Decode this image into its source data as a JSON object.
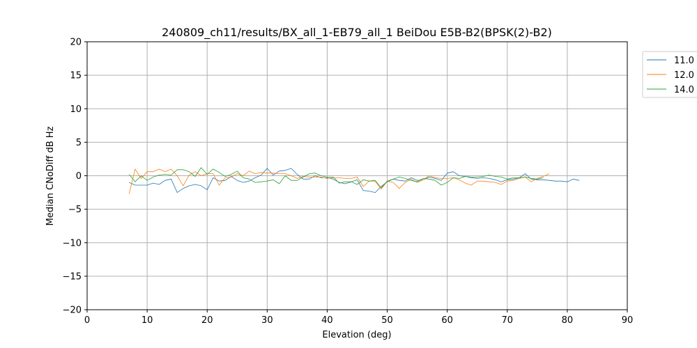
{
  "chart_data": {
    "type": "line",
    "title": "240809_ch11/results/BX_all_1-EB79_all_1 BeiDou E5B-B2(BPSK(2)-B2)",
    "xlabel": "Elevation (deg)",
    "ylabel": "Median CNoDiff dB Hz",
    "xlim": [
      0,
      90
    ],
    "ylim": [
      -20,
      20
    ],
    "xticks": [
      0,
      10,
      20,
      30,
      40,
      50,
      60,
      70,
      80,
      90
    ],
    "yticks": [
      -20,
      -15,
      -10,
      -5,
      0,
      5,
      10,
      15,
      20
    ],
    "grid": true,
    "legend_position": "outside-top-right",
    "series": [
      {
        "name": "11.0",
        "color": "#1f77b4",
        "x": [
          7,
          8,
          9,
          10,
          11,
          12,
          13,
          14,
          15,
          16,
          17,
          18,
          19,
          20,
          21,
          22,
          23,
          24,
          25,
          26,
          27,
          28,
          29,
          30,
          31,
          32,
          33,
          34,
          35,
          36,
          37,
          38,
          39,
          40,
          41,
          42,
          43,
          44,
          45,
          46,
          47,
          48,
          49,
          50,
          51,
          52,
          53,
          54,
          55,
          56,
          57,
          58,
          59,
          60,
          61,
          62,
          63,
          64,
          65,
          66,
          67,
          68,
          69,
          70,
          71,
          72,
          73,
          74,
          75,
          76,
          77,
          78,
          79,
          80,
          81,
          82
        ],
        "y": [
          -1.0,
          -1.4,
          -1.4,
          -1.4,
          -1.1,
          -1.3,
          -0.7,
          -0.5,
          -2.5,
          -1.9,
          -1.5,
          -1.3,
          -1.5,
          -2.1,
          -0.3,
          -0.8,
          -0.7,
          -0.1,
          -0.7,
          -1.0,
          -0.8,
          -0.3,
          0.1,
          1.1,
          0.1,
          0.7,
          0.8,
          1.1,
          0.2,
          -0.5,
          -0.5,
          0.0,
          -0.3,
          -0.3,
          -0.5,
          -1.0,
          -1.2,
          -0.9,
          -0.6,
          -2.2,
          -2.3,
          -2.5,
          -1.6,
          -0.9,
          -0.5,
          -0.7,
          -0.8,
          -0.3,
          -0.7,
          -0.6,
          -0.2,
          -0.4,
          -0.7,
          0.4,
          0.6,
          0.0,
          -0.1,
          -0.3,
          -0.4,
          -0.3,
          -0.4,
          -0.6,
          -0.9,
          -0.6,
          -0.5,
          -0.3,
          0.3,
          -0.5,
          -0.6,
          -0.6,
          -0.7,
          -0.8,
          -0.8,
          -0.9,
          -0.5,
          -0.7
        ]
      },
      {
        "name": "12.0",
        "color": "#ff7f0e",
        "x": [
          7,
          8,
          9,
          10,
          11,
          12,
          13,
          14,
          15,
          16,
          17,
          18,
          19,
          20,
          21,
          22,
          23,
          24,
          25,
          26,
          27,
          28,
          29,
          30,
          31,
          32,
          33,
          34,
          35,
          36,
          37,
          38,
          39,
          40,
          41,
          42,
          43,
          44,
          45,
          46,
          47,
          48,
          49,
          50,
          51,
          52,
          53,
          54,
          55,
          56,
          57,
          58,
          59,
          60,
          61,
          62,
          63,
          64,
          65,
          66,
          67,
          68,
          69,
          70,
          71,
          72,
          73,
          74,
          75,
          76,
          77
        ],
        "y": [
          -2.7,
          1.0,
          -0.4,
          0.6,
          0.6,
          1.0,
          0.6,
          1.0,
          0.0,
          -1.5,
          0.1,
          0.6,
          0.0,
          0.3,
          0.3,
          -1.4,
          -0.3,
          -0.2,
          0.3,
          0.0,
          0.7,
          0.3,
          0.5,
          0.4,
          0.4,
          0.3,
          0.3,
          0.0,
          -0.4,
          -0.1,
          -0.2,
          -0.2,
          -0.2,
          -0.4,
          -0.3,
          -0.3,
          -0.4,
          -0.4,
          -0.2,
          -1.6,
          -0.8,
          -0.8,
          -2.0,
          -0.8,
          -1.0,
          -1.9,
          -1.0,
          -0.5,
          -1.0,
          -0.6,
          0.0,
          -0.3,
          -0.4,
          -0.4,
          -0.3,
          -0.6,
          -1.1,
          -1.4,
          -0.8,
          -0.8,
          -0.9,
          -1.0,
          -1.3,
          -0.8,
          -0.7,
          -0.4,
          -0.2,
          -0.9,
          -0.4,
          -0.1,
          0.3
        ]
      },
      {
        "name": "14.0",
        "color": "#2ca02c",
        "x": [
          7,
          8,
          9,
          10,
          11,
          12,
          13,
          14,
          15,
          16,
          17,
          18,
          19,
          20,
          21,
          22,
          23,
          24,
          25,
          26,
          27,
          28,
          29,
          30,
          31,
          32,
          33,
          34,
          35,
          36,
          37,
          38,
          39,
          40,
          41,
          42,
          43,
          44,
          45,
          46,
          47,
          48,
          49,
          50,
          51,
          52,
          53,
          54,
          55,
          56,
          57,
          58,
          59,
          60,
          61,
          62,
          63,
          64,
          65,
          66,
          67,
          68,
          69,
          70,
          71,
          72,
          73,
          74,
          75,
          76
        ],
        "y": [
          0.2,
          -0.9,
          0.0,
          -0.7,
          -0.2,
          0.1,
          0.2,
          0.1,
          0.9,
          0.9,
          0.6,
          -0.1,
          1.2,
          0.2,
          1.0,
          0.5,
          -0.1,
          0.2,
          0.7,
          -0.3,
          -0.5,
          -1.0,
          -0.9,
          -0.8,
          -0.6,
          -1.2,
          0.0,
          -0.7,
          -0.7,
          -0.2,
          0.3,
          0.4,
          0.0,
          -0.2,
          -0.2,
          -1.1,
          -0.9,
          -0.9,
          -1.3,
          -0.6,
          -0.8,
          -0.7,
          -1.8,
          -0.8,
          -0.5,
          -0.2,
          -0.4,
          -0.7,
          -0.9,
          -0.4,
          -0.5,
          -0.7,
          -1.4,
          -1.0,
          -0.3,
          -0.4,
          -0.1,
          -0.2,
          -0.2,
          -0.1,
          0.1,
          -0.1,
          -0.2,
          -0.5,
          -0.3,
          -0.3,
          -0.2,
          -0.4,
          -0.5,
          -0.3
        ]
      }
    ]
  }
}
